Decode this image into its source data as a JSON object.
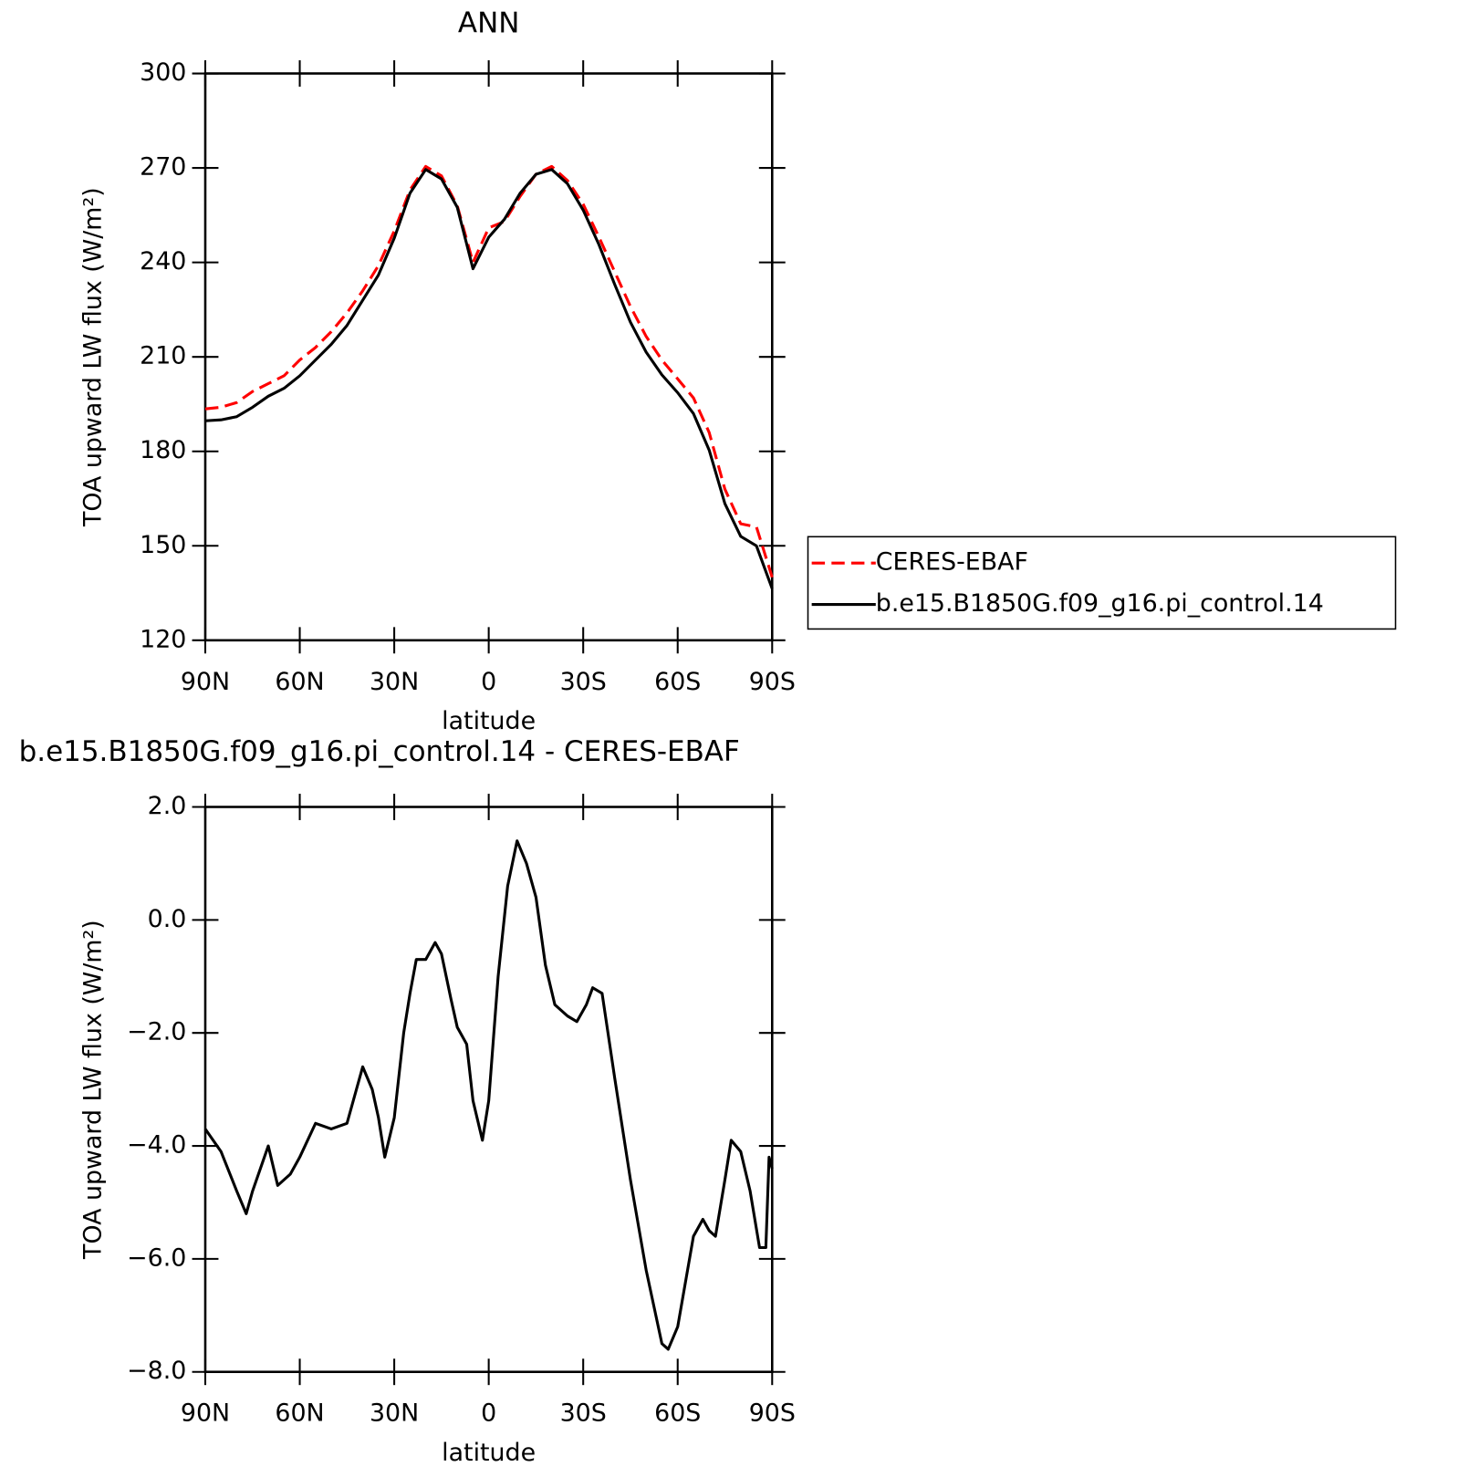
{
  "chart_data": [
    {
      "type": "line",
      "title": "ANN",
      "xlabel": "latitude",
      "ylabel": "TOA upward LW flux (W/m²)",
      "x": [
        90,
        85,
        80,
        75,
        70,
        65,
        60,
        55,
        50,
        45,
        40,
        35,
        30,
        25,
        20,
        15,
        10,
        5,
        0,
        -5,
        -10,
        -15,
        -20,
        -25,
        -30,
        -35,
        -40,
        -45,
        -50,
        -55,
        -60,
        -65,
        -70,
        -75,
        -80,
        -85,
        -90
      ],
      "series": [
        {
          "name": "CERES-EBAF",
          "color": "#ff0000",
          "line_style": "dashed",
          "values": [
            193.5,
            194,
            195.5,
            199,
            201.5,
            204,
            209,
            213,
            218,
            224,
            231,
            239,
            250,
            263,
            270.5,
            267.5,
            258,
            240,
            251,
            253,
            261,
            268,
            270.5,
            266,
            258.5,
            248,
            237,
            226,
            216.5,
            209,
            203,
            197,
            186,
            168,
            157,
            156,
            140
          ]
        },
        {
          "name": "b.e15.B1850G.f09_g16.pi_control.14",
          "color": "#000000",
          "line_style": "solid",
          "values": [
            189.7,
            190,
            191,
            194,
            197.5,
            200,
            204,
            209,
            214,
            220,
            228,
            236,
            247.7,
            262,
            269.5,
            266.5,
            257.5,
            238,
            248,
            253.7,
            262,
            268,
            269.5,
            265,
            256.6,
            245.6,
            233,
            221,
            211.5,
            204.3,
            198.6,
            192,
            180.4,
            163.4,
            153,
            150,
            136.4
          ]
        }
      ],
      "xlim": [
        90,
        -90
      ],
      "xticks": [
        {
          "value": 90,
          "label": "90N"
        },
        {
          "value": 60,
          "label": "60N"
        },
        {
          "value": 30,
          "label": "30N"
        },
        0,
        {
          "value": -30,
          "label": "30S"
        },
        {
          "value": -60,
          "label": "60S"
        },
        {
          "value": -90,
          "label": "90S"
        }
      ],
      "ylim": [
        120,
        300
      ],
      "yticks": [
        120,
        150,
        180,
        210,
        240,
        270,
        300
      ],
      "legend": "outside-right"
    },
    {
      "type": "line",
      "title": "b.e15.B1850G.f09_g16.pi_control.14 - CERES-EBAF",
      "xlabel": "latitude",
      "ylabel": "TOA upward LW flux (W/m²)",
      "x": [
        90,
        85,
        80,
        77,
        75,
        70,
        67,
        63,
        60,
        55,
        50,
        45,
        42,
        40,
        37,
        35,
        33,
        30,
        27,
        25,
        23,
        20,
        17,
        15,
        12,
        10,
        7,
        5,
        2,
        0,
        -3,
        -6,
        -9,
        -12,
        -15,
        -18,
        -21,
        -25,
        -28,
        -31,
        -33,
        -36,
        -40,
        -45,
        -50,
        -55,
        -57,
        -60,
        -65,
        -68,
        -70,
        -72,
        -75,
        -77,
        -80,
        -83,
        -86,
        -88,
        -89,
        -90
      ],
      "series": [
        {
          "color": "#000000",
          "line_style": "solid",
          "values": [
            -3.7,
            -4.1,
            -4.8,
            -5.2,
            -4.8,
            -4.0,
            -4.7,
            -4.5,
            -4.2,
            -3.6,
            -3.7,
            -3.6,
            -3.0,
            -2.6,
            -3.0,
            -3.5,
            -4.2,
            -3.5,
            -2.0,
            -1.3,
            -0.7,
            -0.7,
            -0.4,
            -0.6,
            -1.4,
            -1.9,
            -2.2,
            -3.2,
            -3.9,
            -3.2,
            -1.0,
            0.6,
            1.4,
            1.0,
            0.4,
            -0.8,
            -1.5,
            -1.7,
            -1.8,
            -1.5,
            -1.2,
            -1.3,
            -2.8,
            -4.6,
            -6.2,
            -7.5,
            -7.6,
            -7.2,
            -5.6,
            -5.3,
            -5.5,
            -5.6,
            -4.6,
            -3.9,
            -4.1,
            -4.8,
            -5.8,
            -5.8,
            -4.2,
            -4.4
          ]
        }
      ],
      "xlim": [
        90,
        -90
      ],
      "xticks": [
        {
          "value": 90,
          "label": "90N"
        },
        {
          "value": 60,
          "label": "60N"
        },
        {
          "value": 30,
          "label": "30N"
        },
        0,
        {
          "value": -30,
          "label": "30S"
        },
        {
          "value": -60,
          "label": "60S"
        },
        {
          "value": -90,
          "label": "90S"
        }
      ],
      "ylim": [
        -8,
        2
      ],
      "yticks": [
        {
          "value": -8,
          "label": "−8.0"
        },
        {
          "value": -6,
          "label": "−6.0"
        },
        {
          "value": -4,
          "label": "−4.0"
        },
        {
          "value": -2,
          "label": "−2.0"
        },
        {
          "value": 0,
          "label": "0.0"
        },
        {
          "value": 2,
          "label": "2.0"
        }
      ]
    }
  ]
}
